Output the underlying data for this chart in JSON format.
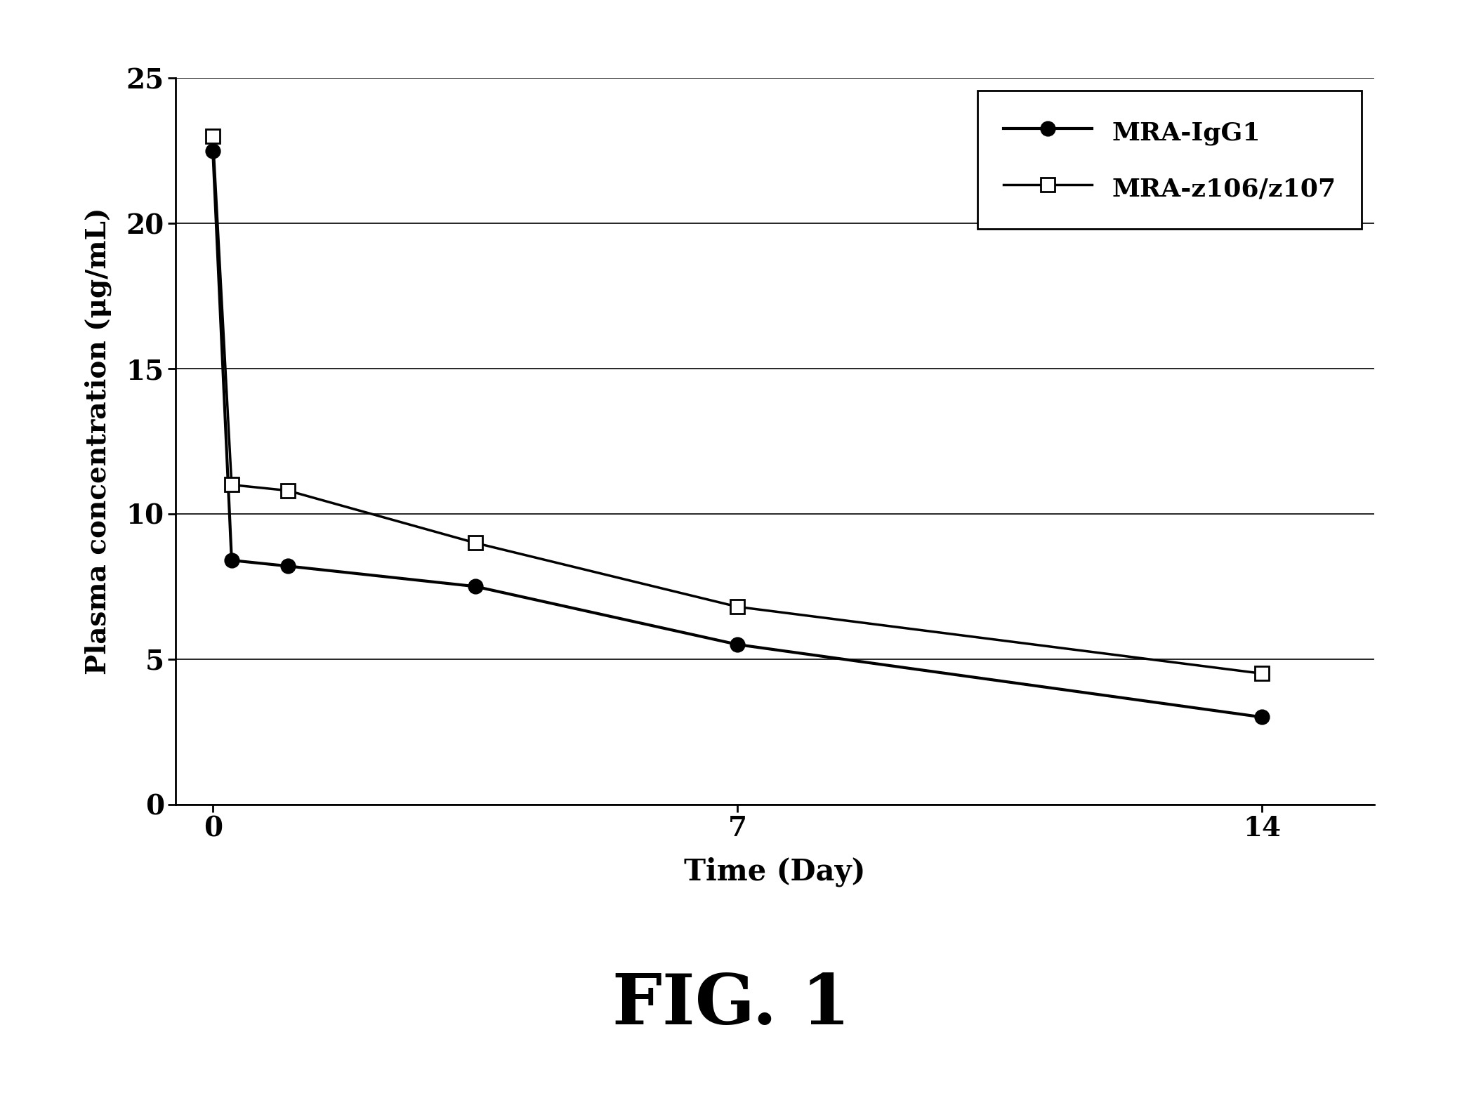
{
  "title": "FIG. 1",
  "xlabel": "Time (Day)",
  "ylabel": "Plasma concentration (μg/mL)",
  "ylim": [
    0,
    25
  ],
  "yticks": [
    0,
    5,
    10,
    15,
    20,
    25
  ],
  "xlim": [
    -0.5,
    15.5
  ],
  "xticks": [
    0,
    7,
    14
  ],
  "series1_name": "MRA-IgG1",
  "series1_x": [
    0,
    0.25,
    1,
    3.5,
    7,
    14
  ],
  "series1_y": [
    22.5,
    8.4,
    8.2,
    7.5,
    5.5,
    3.0
  ],
  "series2_name": "MRA-z106/z107",
  "series2_x": [
    0,
    0.25,
    1,
    3.5,
    7,
    14
  ],
  "series2_y": [
    23.0,
    11.0,
    10.8,
    9.0,
    6.8,
    4.5
  ],
  "background_color": "#ffffff",
  "line_color": "#000000",
  "fig_width": 20.82,
  "fig_height": 15.91,
  "dpi": 100
}
